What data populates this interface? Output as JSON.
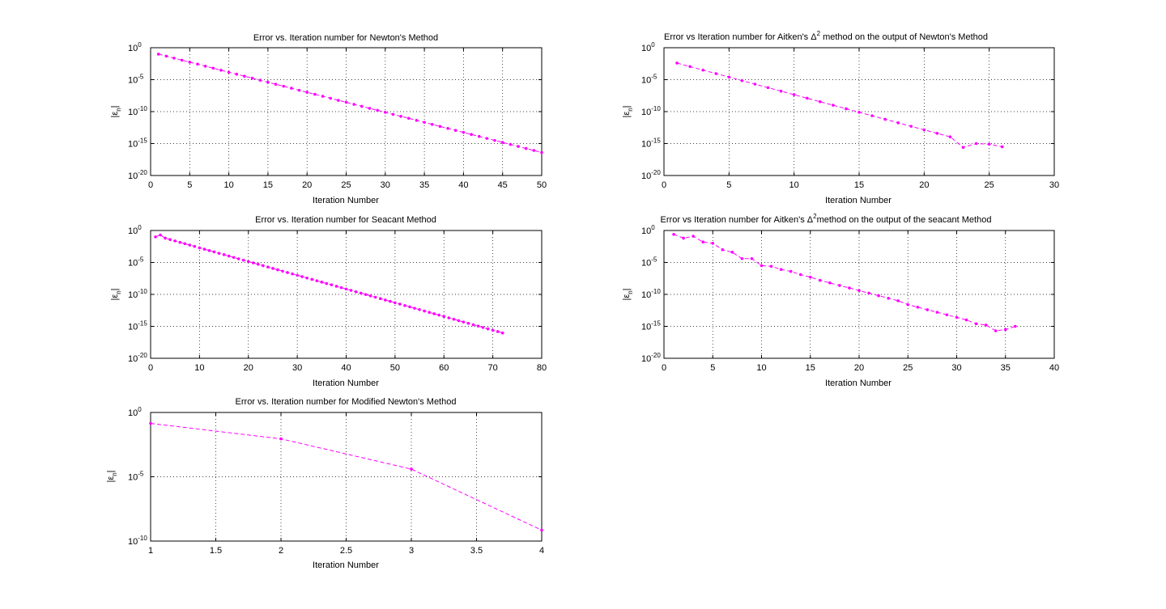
{
  "figure": {
    "background": "#ffffff"
  },
  "style": {
    "series_color": "#ff00ff",
    "grid_color": "#000000",
    "axis_color": "#000000"
  },
  "chart_data": [
    {
      "type": "line",
      "title": "Error vs. Iteration number for Newton's Method",
      "title_superscript": "",
      "title_tail": "",
      "xlabel": "Iteration Number",
      "ylabel_main": "|ε",
      "ylabel_sub": "n",
      "ylabel_tail": "|",
      "xscale": "linear",
      "yscale": "log",
      "xlim": [
        0,
        50
      ],
      "ylim_exp": [
        -20,
        0
      ],
      "xticks": [
        0,
        5,
        10,
        15,
        20,
        25,
        30,
        35,
        40,
        45,
        50
      ],
      "xtick_labels": [
        "0",
        "5",
        "10",
        "15",
        "20",
        "25",
        "30",
        "35",
        "40",
        "45",
        "50"
      ],
      "ytick_exps": [
        0,
        -5,
        -10,
        -15,
        -20
      ],
      "ytick_base": "10",
      "ytick_exp_labels": [
        "0",
        "-5",
        "-10",
        "-15",
        "-20"
      ],
      "grid": true,
      "line_style": "dashed",
      "marker": "dot",
      "series": [
        {
          "x": [
            1,
            2,
            3,
            4,
            5,
            6,
            7,
            8,
            9,
            10,
            11,
            12,
            13,
            14,
            15,
            16,
            17,
            18,
            19,
            20,
            21,
            22,
            23,
            24,
            25,
            26,
            27,
            28,
            29,
            30,
            31,
            32,
            33,
            34,
            35,
            36,
            37,
            38,
            39,
            40,
            41,
            42,
            43,
            44,
            45,
            46,
            47,
            48,
            49,
            50
          ],
          "log10_y": [
            -1.0,
            -1.32,
            -1.63,
            -1.95,
            -2.26,
            -2.57,
            -2.89,
            -3.2,
            -3.52,
            -3.83,
            -4.14,
            -4.46,
            -4.77,
            -5.09,
            -5.4,
            -5.72,
            -6.03,
            -6.34,
            -6.66,
            -6.97,
            -7.29,
            -7.6,
            -7.91,
            -8.23,
            -8.54,
            -8.86,
            -9.17,
            -9.48,
            -9.8,
            -10.11,
            -10.43,
            -10.74,
            -11.05,
            -11.37,
            -11.68,
            -12.0,
            -12.31,
            -12.63,
            -12.94,
            -13.25,
            -13.57,
            -13.88,
            -14.2,
            -14.51,
            -14.82,
            -15.14,
            -15.45,
            -15.77,
            -16.08,
            -16.4
          ]
        }
      ]
    },
    {
      "type": "line",
      "title": "Error vs Iteration number for Aitken's Δ",
      "title_superscript": "2",
      "title_tail": " method on the output of Newton's Method",
      "xlabel": "Iteration Number",
      "ylabel_main": "|ε",
      "ylabel_sub": "n",
      "ylabel_tail": "|",
      "xscale": "linear",
      "yscale": "log",
      "xlim": [
        0,
        30
      ],
      "ylim_exp": [
        -20,
        0
      ],
      "xticks": [
        0,
        5,
        10,
        15,
        20,
        25,
        30
      ],
      "xtick_labels": [
        "0",
        "5",
        "10",
        "15",
        "20",
        "25",
        "30"
      ],
      "ytick_exps": [
        0,
        -5,
        -10,
        -15,
        -20
      ],
      "ytick_base": "10",
      "ytick_exp_labels": [
        "0",
        "-5",
        "-10",
        "-15",
        "-20"
      ],
      "grid": true,
      "line_style": "dashed",
      "marker": "dot",
      "series": [
        {
          "x": [
            1,
            2,
            3,
            4,
            5,
            6,
            7,
            8,
            9,
            10,
            11,
            12,
            13,
            14,
            15,
            16,
            17,
            18,
            19,
            20,
            21,
            22,
            23,
            24,
            25,
            26
          ],
          "log10_y": [
            -2.4,
            -2.95,
            -3.5,
            -4.05,
            -4.6,
            -5.15,
            -5.7,
            -6.25,
            -6.8,
            -7.35,
            -7.9,
            -8.45,
            -9.0,
            -9.55,
            -10.1,
            -10.65,
            -11.2,
            -11.75,
            -12.3,
            -12.85,
            -13.4,
            -13.95,
            -15.6,
            -15.0,
            -15.1,
            -15.5
          ]
        }
      ]
    },
    {
      "type": "line",
      "title": "Error vs. Iteration number for Seacant Method",
      "title_superscript": "",
      "title_tail": "",
      "xlabel": "Iteration Number",
      "ylabel_main": "|ε",
      "ylabel_sub": "n",
      "ylabel_tail": "|",
      "xscale": "linear",
      "yscale": "log",
      "xlim": [
        0,
        80
      ],
      "ylim_exp": [
        -20,
        0
      ],
      "xticks": [
        0,
        10,
        20,
        30,
        40,
        50,
        60,
        70,
        80
      ],
      "xtick_labels": [
        "0",
        "10",
        "20",
        "30",
        "40",
        "50",
        "60",
        "70",
        "80"
      ],
      "ytick_exps": [
        0,
        -5,
        -10,
        -15,
        -20
      ],
      "ytick_base": "10",
      "ytick_exp_labels": [
        "0",
        "-5",
        "-10",
        "-15",
        "-20"
      ],
      "grid": true,
      "line_style": "dashed",
      "marker": "dot",
      "series": [
        {
          "x": [
            1,
            2,
            3,
            4,
            5,
            6,
            7,
            8,
            9,
            10,
            11,
            12,
            13,
            14,
            15,
            16,
            17,
            18,
            19,
            20,
            21,
            22,
            23,
            24,
            25,
            26,
            27,
            28,
            29,
            30,
            31,
            32,
            33,
            34,
            35,
            36,
            37,
            38,
            39,
            40,
            41,
            42,
            43,
            44,
            45,
            46,
            47,
            48,
            49,
            50,
            51,
            52,
            53,
            54,
            55,
            56,
            57,
            58,
            59,
            60,
            61,
            62,
            63,
            64,
            65,
            66,
            67,
            68,
            69,
            70,
            71,
            72
          ],
          "log10_y": [
            -1.0,
            -0.7,
            -1.2,
            -1.42,
            -1.63,
            -1.85,
            -2.06,
            -2.28,
            -2.49,
            -2.71,
            -2.92,
            -3.14,
            -3.35,
            -3.57,
            -3.78,
            -4.0,
            -4.21,
            -4.43,
            -4.64,
            -4.86,
            -5.07,
            -5.29,
            -5.5,
            -5.72,
            -5.93,
            -6.15,
            -6.36,
            -6.58,
            -6.79,
            -7.01,
            -7.22,
            -7.44,
            -7.65,
            -7.87,
            -8.08,
            -8.3,
            -8.51,
            -8.73,
            -8.94,
            -9.16,
            -9.37,
            -9.59,
            -9.8,
            -10.02,
            -10.23,
            -10.45,
            -10.66,
            -10.88,
            -11.09,
            -11.31,
            -11.52,
            -11.74,
            -11.95,
            -12.17,
            -12.38,
            -12.6,
            -12.81,
            -13.03,
            -13.24,
            -13.46,
            -13.67,
            -13.89,
            -14.1,
            -14.32,
            -14.53,
            -14.75,
            -14.96,
            -15.18,
            -15.39,
            -15.61,
            -15.82,
            -16.04
          ]
        }
      ]
    },
    {
      "type": "line",
      "title": "Error vs Iteration number for Aitken's Δ",
      "title_superscript": "2",
      "title_tail": "method on the output of the seacant Method",
      "xlabel": "Iteration Number",
      "ylabel_main": "|ε",
      "ylabel_sub": "n",
      "ylabel_tail": "|",
      "xscale": "linear",
      "yscale": "log",
      "xlim": [
        0,
        40
      ],
      "ylim_exp": [
        -20,
        0
      ],
      "xticks": [
        0,
        5,
        10,
        15,
        20,
        25,
        30,
        35,
        40
      ],
      "xtick_labels": [
        "0",
        "5",
        "10",
        "15",
        "20",
        "25",
        "30",
        "35",
        "40"
      ],
      "ytick_exps": [
        0,
        -5,
        -10,
        -15,
        -20
      ],
      "ytick_base": "10",
      "ytick_exp_labels": [
        "0",
        "-5",
        "-10",
        "-15",
        "-20"
      ],
      "grid": true,
      "line_style": "dashed",
      "marker": "dot",
      "series": [
        {
          "x": [
            1,
            2,
            3,
            4,
            5,
            6,
            7,
            8,
            9,
            10,
            11,
            12,
            13,
            14,
            15,
            16,
            17,
            18,
            19,
            20,
            21,
            22,
            23,
            24,
            25,
            26,
            27,
            28,
            29,
            30,
            31,
            32,
            33,
            34,
            35,
            36
          ],
          "log10_y": [
            -0.6,
            -1.2,
            -0.9,
            -1.8,
            -2.0,
            -3.0,
            -3.4,
            -4.4,
            -4.4,
            -5.5,
            -5.6,
            -6.1,
            -6.4,
            -6.9,
            -7.3,
            -7.8,
            -8.2,
            -8.6,
            -9.0,
            -9.4,
            -9.8,
            -10.2,
            -10.6,
            -11.0,
            -11.6,
            -12.0,
            -12.4,
            -12.8,
            -13.2,
            -13.6,
            -14.0,
            -14.6,
            -14.8,
            -15.7,
            -15.5,
            -15.0
          ]
        }
      ]
    },
    {
      "type": "line",
      "title": "Error vs. Iteration number for Modified Newton's Method",
      "title_superscript": "",
      "title_tail": "",
      "xlabel": "Iteration Number",
      "ylabel_main": "|ε",
      "ylabel_sub": "n",
      "ylabel_tail": "|",
      "xscale": "linear",
      "yscale": "log",
      "xlim": [
        1,
        4
      ],
      "ylim_exp": [
        -10,
        0
      ],
      "xticks": [
        1,
        1.5,
        2,
        2.5,
        3,
        3.5,
        4
      ],
      "xtick_labels": [
        "1",
        "1.5",
        "2",
        "2.5",
        "3",
        "3.5",
        "4"
      ],
      "ytick_exps": [
        0,
        -5,
        -10
      ],
      "ytick_base": "10",
      "ytick_exp_labels": [
        "0",
        "-5",
        "-10"
      ],
      "grid": true,
      "line_style": "dashed",
      "marker": "dot",
      "series": [
        {
          "x": [
            1,
            2,
            3,
            4
          ],
          "log10_y": [
            -0.85,
            -2.05,
            -4.4,
            -9.15
          ]
        }
      ]
    }
  ]
}
